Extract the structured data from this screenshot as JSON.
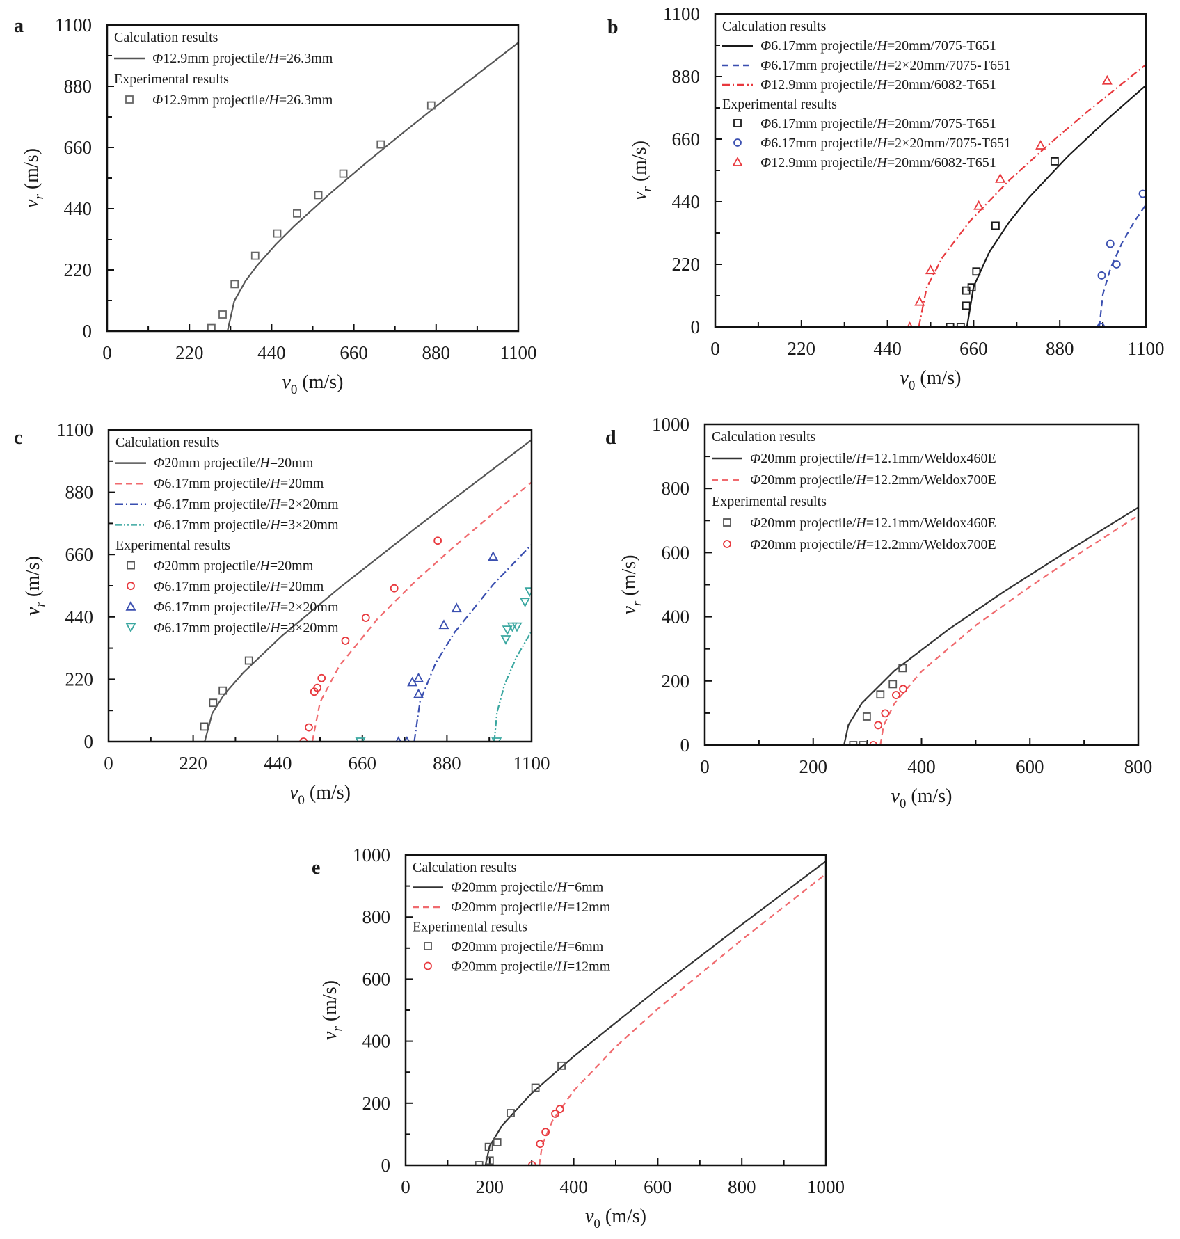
{
  "chart_data": [
    {
      "panel": "a",
      "type": "line+scatter",
      "xlabel": "v0 (m/s)",
      "ylabel": "vr (m/s)",
      "xlim": [
        0,
        1100
      ],
      "ylim": [
        0,
        1100
      ],
      "xticks": [
        0,
        220,
        440,
        660,
        880,
        1100
      ],
      "yticks": [
        0,
        220,
        440,
        660,
        880,
        1100
      ],
      "grid": false,
      "legend_position": "top-left",
      "calc_title": "Calculation results",
      "exp_title": "Experimental results",
      "series": [
        {
          "name": "Φ12.9mm projectile/H=26.3mm",
          "kind": "line",
          "style": "solid",
          "color": "#555555",
          "points": [
            [
              322,
              0
            ],
            [
              340,
              108
            ],
            [
              370,
              180
            ],
            [
              400,
              234
            ],
            [
              450,
              310
            ],
            [
              500,
              377
            ],
            [
              600,
              499
            ],
            [
              700,
              613
            ],
            [
              800,
              722
            ],
            [
              900,
              829
            ],
            [
              1000,
              933
            ],
            [
              1100,
              1037
            ]
          ]
        },
        {
          "name": "Φ12.9mm projectile/H=26.3mm",
          "kind": "scatter",
          "marker": "square",
          "color": "#666666",
          "points": [
            [
              279,
              11
            ],
            [
              309,
              60
            ],
            [
              341,
              169
            ],
            [
              396,
              271
            ],
            [
              455,
              351
            ],
            [
              508,
              423
            ],
            [
              565,
              489
            ],
            [
              632,
              566
            ],
            [
              732,
              671
            ],
            [
              867,
              811
            ]
          ]
        }
      ]
    },
    {
      "panel": "b",
      "type": "line+scatter",
      "xlabel": "v0 (m/s)",
      "ylabel": "vr (m/s)",
      "xlim": [
        0,
        1100
      ],
      "ylim": [
        0,
        1100
      ],
      "xticks": [
        0,
        220,
        440,
        660,
        880,
        1100
      ],
      "yticks": [
        0,
        220,
        440,
        660,
        880,
        1100
      ],
      "grid": false,
      "legend_position": "top-left",
      "calc_title": "Calculation results",
      "exp_title": "Experimental results",
      "series": [
        {
          "name": "Φ6.17mm projectile/H=20mm/7075-T651",
          "kind": "line",
          "style": "solid",
          "color": "#1a1a1a",
          "points": [
            [
              643,
              0
            ],
            [
              660,
              142
            ],
            [
              700,
              263
            ],
            [
              750,
              367
            ],
            [
              800,
              453
            ],
            [
              900,
              599
            ],
            [
              1000,
              728
            ],
            [
              1100,
              849
            ]
          ]
        },
        {
          "name": "Φ6.17mm projectile/H=2×20mm/7075-T651",
          "kind": "line",
          "style": "dash",
          "color": "#3a4fb0",
          "points": [
            [
              981,
              0
            ],
            [
              990,
              115
            ],
            [
              1010,
              208
            ],
            [
              1040,
              298
            ],
            [
              1070,
              369
            ],
            [
              1100,
              430
            ]
          ]
        },
        {
          "name": "Φ12.9mm projectile/H=20mm/6082-T651",
          "kind": "line",
          "style": "dashdot",
          "color": "#e8383d",
          "points": [
            [
              520,
              0
            ],
            [
              540,
              138
            ],
            [
              580,
              244
            ],
            [
              650,
              371
            ],
            [
              750,
              514
            ],
            [
              850,
              639
            ],
            [
              950,
              756
            ],
            [
              1100,
              922
            ]
          ]
        },
        {
          "name": "Φ6.17mm projectile/H=20mm/7075-T651",
          "kind": "scatter",
          "marker": "square",
          "color": "#1a1a1a",
          "points": [
            [
              600,
              0
            ],
            [
              627,
              0
            ],
            [
              641,
              75
            ],
            [
              641,
              128
            ],
            [
              655,
              139
            ],
            [
              667,
              195
            ],
            [
              716,
              356
            ],
            [
              867,
              582
            ]
          ]
        },
        {
          "name": "Φ6.17mm projectile/H=2×20mm/7075-T651",
          "kind": "scatter",
          "marker": "circle",
          "color": "#3a4fb0",
          "points": [
            [
              985,
              0
            ],
            [
              987,
              181
            ],
            [
              1009,
              292
            ],
            [
              1025,
              220
            ],
            [
              1092,
              468
            ]
          ]
        },
        {
          "name": "Φ12.9mm projectile/H=20mm/6082-T651",
          "kind": "scatter",
          "marker": "triangle-up",
          "color": "#e8383d",
          "points": [
            [
              497,
              0
            ],
            [
              522,
              89
            ],
            [
              550,
              200
            ],
            [
              673,
              426
            ],
            [
              728,
              521
            ],
            [
              831,
              638
            ],
            [
              1001,
              866
            ]
          ]
        }
      ]
    },
    {
      "panel": "c",
      "type": "line+scatter",
      "xlabel": "v0 (m/s)",
      "ylabel": "vr (m/s)",
      "xlim": [
        0,
        1100
      ],
      "ylim": [
        0,
        1100
      ],
      "xticks": [
        0,
        220,
        440,
        660,
        880,
        1100
      ],
      "yticks": [
        0,
        220,
        440,
        660,
        880,
        1100
      ],
      "grid": false,
      "legend_position": "top-left",
      "calc_title": "Calculation results",
      "exp_title": "Experimental results",
      "series": [
        {
          "name": "Φ20mm projectile/H=20mm",
          "kind": "line",
          "style": "solid",
          "color": "#555555",
          "points": [
            [
              250,
              0
            ],
            [
              270,
              101
            ],
            [
              300,
              165
            ],
            [
              350,
              243
            ],
            [
              450,
              372
            ],
            [
              600,
              542
            ],
            [
              800,
              755
            ],
            [
              1000,
              962
            ],
            [
              1100,
              1065
            ]
          ]
        },
        {
          "name": "Φ6.17mm projectile/H=20mm",
          "kind": "line",
          "style": "dash",
          "color": "#f06a6e",
          "points": [
            [
              530,
              0
            ],
            [
              550,
              139
            ],
            [
              600,
              267
            ],
            [
              700,
              434
            ],
            [
              800,
              569
            ],
            [
              900,
              690
            ],
            [
              1000,
              805
            ],
            [
              1100,
              915
            ]
          ]
        },
        {
          "name": "Φ6.17mm projectile/H=2×20mm",
          "kind": "line",
          "style": "dashdot",
          "color": "#3a4fb0",
          "points": [
            [
              795,
              0
            ],
            [
              810,
              142
            ],
            [
              850,
              275
            ],
            [
              900,
              386
            ],
            [
              1000,
              554
            ],
            [
              1100,
              695
            ]
          ]
        },
        {
          "name": "Φ6.17mm projectile/H=3×20mm",
          "kind": "line",
          "style": "dashdotdot",
          "color": "#3aa7a0",
          "points": [
            [
              1003,
              0
            ],
            [
              1010,
              103
            ],
            [
              1030,
              202
            ],
            [
              1060,
              296
            ],
            [
              1100,
              390
            ]
          ]
        },
        {
          "name": "Φ20mm projectile/H=20mm",
          "kind": "scatter",
          "marker": "square",
          "color": "#555555",
          "points": [
            [
              249,
              53
            ],
            [
              272,
              137
            ],
            [
              297,
              180
            ],
            [
              365,
              286
            ]
          ]
        },
        {
          "name": "Φ6.17mm projectile/H=20mm",
          "kind": "scatter",
          "marker": "circle",
          "color": "#e8383d",
          "points": [
            [
              507,
              0
            ],
            [
              521,
              50
            ],
            [
              535,
              176
            ],
            [
              543,
              190
            ],
            [
              554,
              224
            ],
            [
              616,
              356
            ],
            [
              669,
              437
            ],
            [
              743,
              541
            ],
            [
              856,
              709
            ]
          ]
        },
        {
          "name": "Φ6.17mm projectile/H=2×20mm",
          "kind": "scatter",
          "marker": "triangle-up",
          "color": "#3a4fb0",
          "points": [
            [
              754,
              0
            ],
            [
              776,
              0
            ],
            [
              790,
              210
            ],
            [
              806,
              224
            ],
            [
              806,
              168
            ],
            [
              872,
              412
            ],
            [
              905,
              471
            ],
            [
              1000,
              653
            ]
          ]
        },
        {
          "name": "Φ6.17mm projectile/H=3×20mm",
          "kind": "scatter",
          "marker": "triangle-down",
          "color": "#3aa7a0",
          "points": [
            [
              655,
              0
            ],
            [
              1009,
              0
            ],
            [
              1033,
              361
            ],
            [
              1037,
              395
            ],
            [
              1050,
              406
            ],
            [
              1062,
              406
            ],
            [
              1083,
              493
            ],
            [
              1095,
              530
            ]
          ]
        }
      ]
    },
    {
      "panel": "d",
      "type": "line+scatter",
      "xlabel": "v0 (m/s)",
      "ylabel": "vr (m/s)",
      "xlim": [
        0,
        800
      ],
      "ylim": [
        0,
        1000
      ],
      "xticks": [
        0,
        200,
        400,
        600,
        800
      ],
      "yticks": [
        0,
        200,
        400,
        600,
        800,
        1000
      ],
      "grid": false,
      "legend_position": "top-left",
      "calc_title": "Calculation results",
      "exp_title": "Experimental results",
      "series": [
        {
          "name": "Φ20mm projectile/H=12.1mm/Weldox460E",
          "kind": "line",
          "style": "solid",
          "color": "#333333",
          "points": [
            [
              257,
              0
            ],
            [
              265,
              63
            ],
            [
              290,
              131
            ],
            [
              350,
              232
            ],
            [
              450,
              361
            ],
            [
              550,
              476
            ],
            [
              650,
              584
            ],
            [
              800,
              741
            ]
          ]
        },
        {
          "name": "Φ20mm projectile/H=12.2mm/Weldox700E",
          "kind": "line",
          "style": "dash",
          "color": "#f06a6e",
          "points": [
            [
              324,
              0
            ],
            [
              330,
              61
            ],
            [
              350,
              130
            ],
            [
              400,
              230
            ],
            [
              500,
              373
            ],
            [
              600,
              494
            ],
            [
              700,
              607
            ],
            [
              800,
              716
            ]
          ]
        },
        {
          "name": "Φ20mm projectile/H=12.1mm/Weldox460E",
          "kind": "scatter",
          "marker": "square",
          "color": "#555555",
          "points": [
            [
              274,
              0
            ],
            [
              292,
              0
            ],
            [
              299,
              89
            ],
            [
              324,
              158
            ],
            [
              347,
              190
            ],
            [
              365,
              240
            ]
          ]
        },
        {
          "name": "Φ20mm projectile/H=12.2mm/Weldox700E",
          "kind": "scatter",
          "marker": "circle",
          "color": "#e8383d",
          "points": [
            [
              311,
              0
            ],
            [
              320,
              62
            ],
            [
              333,
              99
            ],
            [
              353,
              156
            ],
            [
              366,
              175
            ]
          ]
        }
      ]
    },
    {
      "panel": "e",
      "type": "line+scatter",
      "xlabel": "v0 (m/s)",
      "ylabel": "vr (m/s)",
      "xlim": [
        0,
        1000
      ],
      "ylim": [
        0,
        1000
      ],
      "xticks": [
        0,
        200,
        400,
        600,
        800,
        1000
      ],
      "yticks": [
        0,
        200,
        400,
        600,
        800,
        1000
      ],
      "grid": false,
      "legend_position": "top-left",
      "calc_title": "Calculation results",
      "exp_title": "Experimental results",
      "series": [
        {
          "name": "Φ20mm projectile/H=6mm",
          "kind": "line",
          "style": "solid",
          "color": "#333333",
          "points": [
            [
              190,
              0
            ],
            [
              200,
              62
            ],
            [
              230,
              129
            ],
            [
              300,
              232
            ],
            [
              400,
              351
            ],
            [
              600,
              568
            ],
            [
              800,
              776
            ],
            [
              1000,
              980
            ]
          ]
        },
        {
          "name": "Φ20mm projectile/H=12mm",
          "kind": "line",
          "style": "dash",
          "color": "#f06a6e",
          "points": [
            [
              318,
              0
            ],
            [
              325,
              66
            ],
            [
              350,
              145
            ],
            [
              400,
              240
            ],
            [
              500,
              382
            ],
            [
              600,
              504
            ],
            [
              800,
              727
            ],
            [
              1000,
              939
            ]
          ]
        },
        {
          "name": "Φ20mm projectile/H=6mm",
          "kind": "scatter",
          "marker": "square",
          "color": "#555555",
          "points": [
            [
              175,
              0
            ],
            [
              200,
              15
            ],
            [
              198,
              59
            ],
            [
              218,
              74
            ],
            [
              250,
              168
            ],
            [
              309,
              250
            ],
            [
              371,
              321
            ]
          ]
        },
        {
          "name": "Φ20mm projectile/H=12mm",
          "kind": "scatter",
          "marker": "circle",
          "color": "#e8383d",
          "points": [
            [
              301,
              0
            ],
            [
              320,
              69
            ],
            [
              333,
              107
            ],
            [
              356,
              166
            ],
            [
              367,
              181
            ]
          ]
        }
      ]
    }
  ]
}
